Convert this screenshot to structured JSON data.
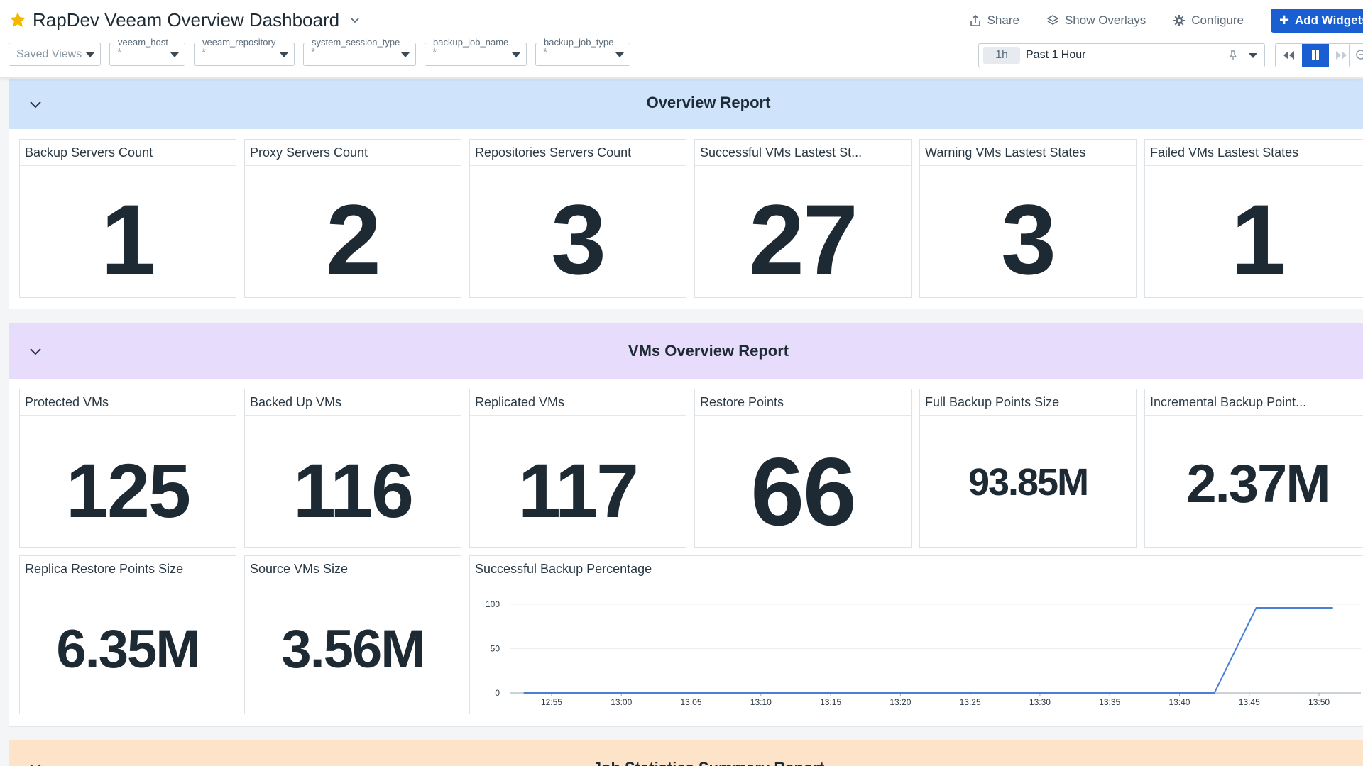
{
  "header": {
    "title": "RapDev Veeam Overview Dashboard",
    "actions": {
      "share": "Share",
      "show_overlays": "Show Overlays",
      "configure": "Configure",
      "add_widgets": "Add Widgets"
    }
  },
  "filters": {
    "saved_views": "Saved Views",
    "vars": [
      {
        "name": "veeam_host",
        "value": "*"
      },
      {
        "name": "veeam_repository",
        "value": "*"
      },
      {
        "name": "system_session_type",
        "value": "*"
      },
      {
        "name": "backup_job_name",
        "value": "*"
      },
      {
        "name": "backup_job_type",
        "value": "*"
      }
    ]
  },
  "time": {
    "chip": "1h",
    "range": "Past 1 Hour"
  },
  "overview": {
    "title": "Overview Report",
    "widgets": [
      {
        "title": "Backup Servers Count",
        "value": "1"
      },
      {
        "title": "Proxy Servers Count",
        "value": "2"
      },
      {
        "title": "Repositories Servers Count",
        "value": "3"
      },
      {
        "title": "Successful VMs Lastest St...",
        "value": "27"
      },
      {
        "title": "Warning VMs Lastest States",
        "value": "3"
      },
      {
        "title": "Failed VMs Lastest States",
        "value": "1"
      }
    ]
  },
  "vms": {
    "title": "VMs Overview Report",
    "widgets": [
      {
        "title": "Protected VMs",
        "value": "125"
      },
      {
        "title": "Backed Up VMs",
        "value": "116"
      },
      {
        "title": "Replicated VMs",
        "value": "117"
      },
      {
        "title": "Restore Points",
        "value": "66"
      },
      {
        "title": "Full Backup Points Size",
        "value": "93.85M"
      },
      {
        "title": "Incremental Backup Point...",
        "value": "2.37M"
      },
      {
        "title": "Replica Restore Points Size",
        "value": "6.35M"
      },
      {
        "title": "Source VMs Size",
        "value": "3.56M"
      }
    ],
    "chart_title": "Successful Backup Percentage"
  },
  "job_stats": {
    "title": "Job Statistics Summary Report"
  },
  "chart_data": {
    "type": "line",
    "title": "Successful Backup Percentage",
    "xlabel": "",
    "ylabel": "",
    "x_ticks": [
      "12:55",
      "13:00",
      "13:05",
      "13:10",
      "13:15",
      "13:20",
      "13:25",
      "13:30",
      "13:35",
      "13:40",
      "13:45",
      "13:50"
    ],
    "y_ticks": [
      0,
      50,
      100
    ],
    "ylim": [
      0,
      100
    ],
    "xlim_minutes_after_1255": [
      -3,
      58
    ],
    "series": [
      {
        "color": "#4a7fd4",
        "x_minutes_after_1255": [
          -2,
          47.5,
          50.5,
          56
        ],
        "values": [
          0,
          0,
          96,
          96
        ]
      }
    ],
    "grid": "horizontal"
  },
  "colors": {
    "accent": "#1a5fd1",
    "overview_band": "#cfe3fb",
    "vms_band": "#e7dcfb",
    "jobs_band": "#fde3c7",
    "star": "#f5b800"
  }
}
